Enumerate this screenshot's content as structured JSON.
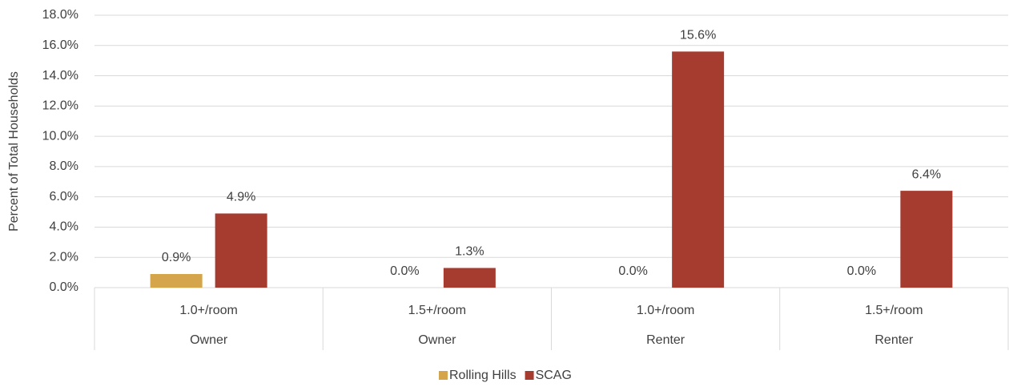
{
  "chart_data": {
    "type": "bar",
    "y_axis_label": "Percent of Total Households",
    "categories": [
      "1.0+/room",
      "1.5+/room",
      "1.0+/room",
      "1.5+/room"
    ],
    "category_groups": [
      "Owner",
      "Owner",
      "Renter",
      "Renter"
    ],
    "series": [
      {
        "name": "Rolling Hills",
        "color": "#d4a54a",
        "values": [
          0.9,
          0.0,
          0.0,
          0.0
        ],
        "value_labels": [
          "0.9%",
          "0.0%",
          "0.0%",
          "0.0%"
        ]
      },
      {
        "name": "SCAG",
        "color": "#a63c30",
        "values": [
          4.9,
          1.3,
          15.6,
          6.4
        ],
        "value_labels": [
          "4.9%",
          "1.3%",
          "15.6%",
          "6.4%"
        ]
      }
    ],
    "ylim": [
      0,
      18
    ],
    "yticks": [
      {
        "value": 0,
        "label": "0.0%"
      },
      {
        "value": 2,
        "label": "2.0%"
      },
      {
        "value": 4,
        "label": "4.0%"
      },
      {
        "value": 6,
        "label": "6.0%"
      },
      {
        "value": 8,
        "label": "8.0%"
      },
      {
        "value": 10,
        "label": "10.0%"
      },
      {
        "value": 12,
        "label": "12.0%"
      },
      {
        "value": 14,
        "label": "14.0%"
      },
      {
        "value": 16,
        "label": "16.0%"
      },
      {
        "value": 18,
        "label": "18.0%"
      }
    ],
    "grid": true,
    "legend": "bottom"
  }
}
